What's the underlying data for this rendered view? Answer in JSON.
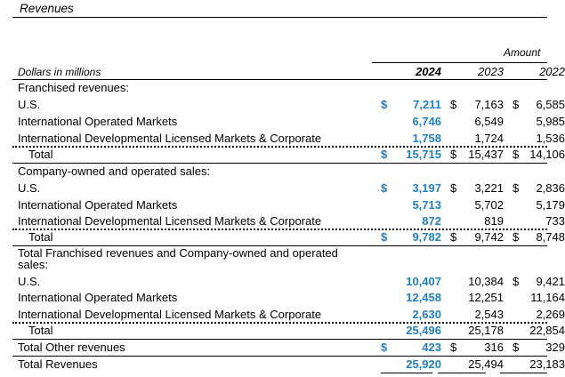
{
  "title": "Revenues",
  "amount_label": "Amount",
  "units_label": "Dollars in millions",
  "years": [
    "2024",
    "2023",
    "2022"
  ],
  "sections": {
    "franchised": {
      "heading": "Franchised revenues:",
      "rows": [
        {
          "label": "U.S.",
          "v2024": "7,211",
          "v2023": "7,163",
          "v2022": "6,585"
        },
        {
          "label": "International Operated Markets",
          "v2024": "6,746",
          "v2023": "6,549",
          "v2022": "5,985"
        },
        {
          "label": "International Developmental Licensed Markets & Corporate",
          "v2024": "1,758",
          "v2023": "1,724",
          "v2022": "1,536"
        }
      ],
      "total": {
        "label": "Total",
        "v2024": "15,715",
        "v2023": "15,437",
        "v2022": "14,106"
      }
    },
    "company": {
      "heading": "Company-owned and operated sales:",
      "rows": [
        {
          "label": "U.S.",
          "v2024": "3,197",
          "v2023": "3,221",
          "v2022": "2,836"
        },
        {
          "label": "International Operated Markets",
          "v2024": "5,713",
          "v2023": "5,702",
          "v2022": "5,179"
        },
        {
          "label": "International Developmental Licensed Markets & Corporate",
          "v2024": "872",
          "v2023": "819",
          "v2022": "733"
        }
      ],
      "total": {
        "label": "Total",
        "v2024": "9,782",
        "v2023": "9,742",
        "v2022": "8,748"
      }
    },
    "combined": {
      "heading": "Total Franchised revenues and Company-owned and operated sales:",
      "rows": [
        {
          "label": "U.S.",
          "v2024": "10,407",
          "v2023": "10,384",
          "v2022": "9,421"
        },
        {
          "label": "International Operated Markets",
          "v2024": "12,458",
          "v2023": "12,251",
          "v2022": "11,164"
        },
        {
          "label": "International Developmental Licensed Markets & Corporate",
          "v2024": "2,630",
          "v2023": "2,543",
          "v2022": "2,269"
        }
      ],
      "total": {
        "label": "Total",
        "v2024": "25,496",
        "v2023": "25,178",
        "v2022": "22,854"
      }
    }
  },
  "other": {
    "label": "Total Other revenues",
    "v2024": "423",
    "v2023": "316",
    "v2022": "329"
  },
  "grand": {
    "label": "Total Revenues",
    "v2024": "25,920",
    "v2023": "25,494",
    "v2022": "23,183"
  },
  "currency": "$",
  "colors": {
    "highlight": "#1f7fc4"
  }
}
